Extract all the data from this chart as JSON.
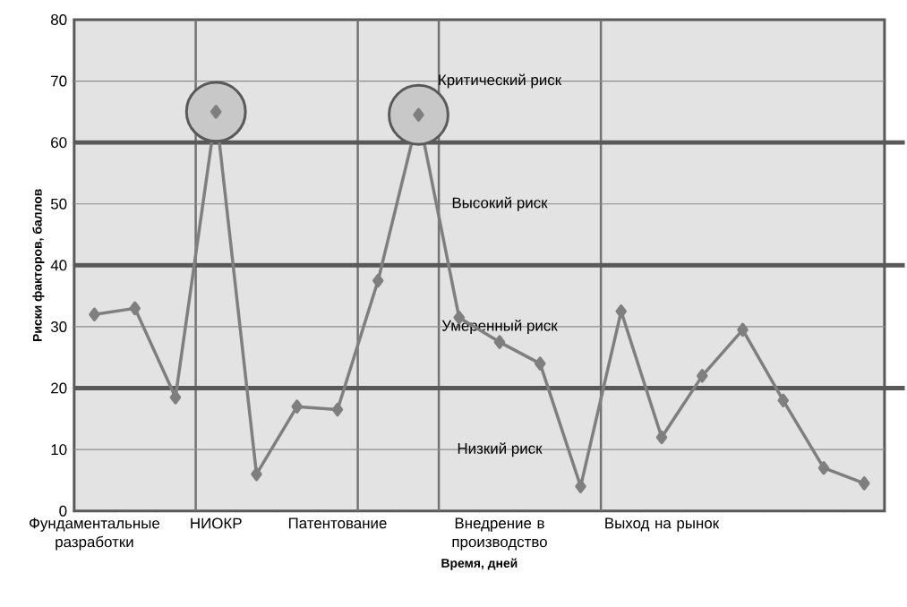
{
  "chart_data": {
    "type": "line",
    "xlabel": "Время, дней",
    "ylabel": "Риски факторов, баллов",
    "categories": [
      "Фундаментальные разработки",
      null,
      null,
      "НИОКР",
      null,
      null,
      "Патентование",
      null,
      null,
      null,
      "Внедрение в производство",
      null,
      null,
      null,
      "Выход на рынок",
      null,
      null,
      null,
      null,
      null
    ],
    "series": [
      {
        "color": "#7f7f7f",
        "values": [
          32,
          33,
          18.5,
          65,
          6,
          17,
          16.5,
          37.5,
          64.5,
          31.5,
          27.5,
          24,
          4,
          32.5,
          12,
          22,
          29.5,
          18,
          7,
          4.5
        ]
      },
      {
        "type": "scatter",
        "color": "#c8c8c8",
        "values": [
          null,
          null,
          null,
          65,
          null,
          null,
          null,
          null,
          64.5,
          null,
          null,
          null,
          null,
          null,
          null,
          null,
          null,
          null,
          null,
          null
        ]
      }
    ],
    "ylim": [
      0,
      80
    ],
    "yticks": [
      0,
      10,
      20,
      30,
      40,
      50,
      60,
      70,
      80
    ],
    "grid": "y",
    "marker": "diamond",
    "line_style": "solid",
    "annotations": [
      "Низкий риск",
      "Умеренный риск",
      "Высокий риск",
      "Критический риск"
    ]
  }
}
